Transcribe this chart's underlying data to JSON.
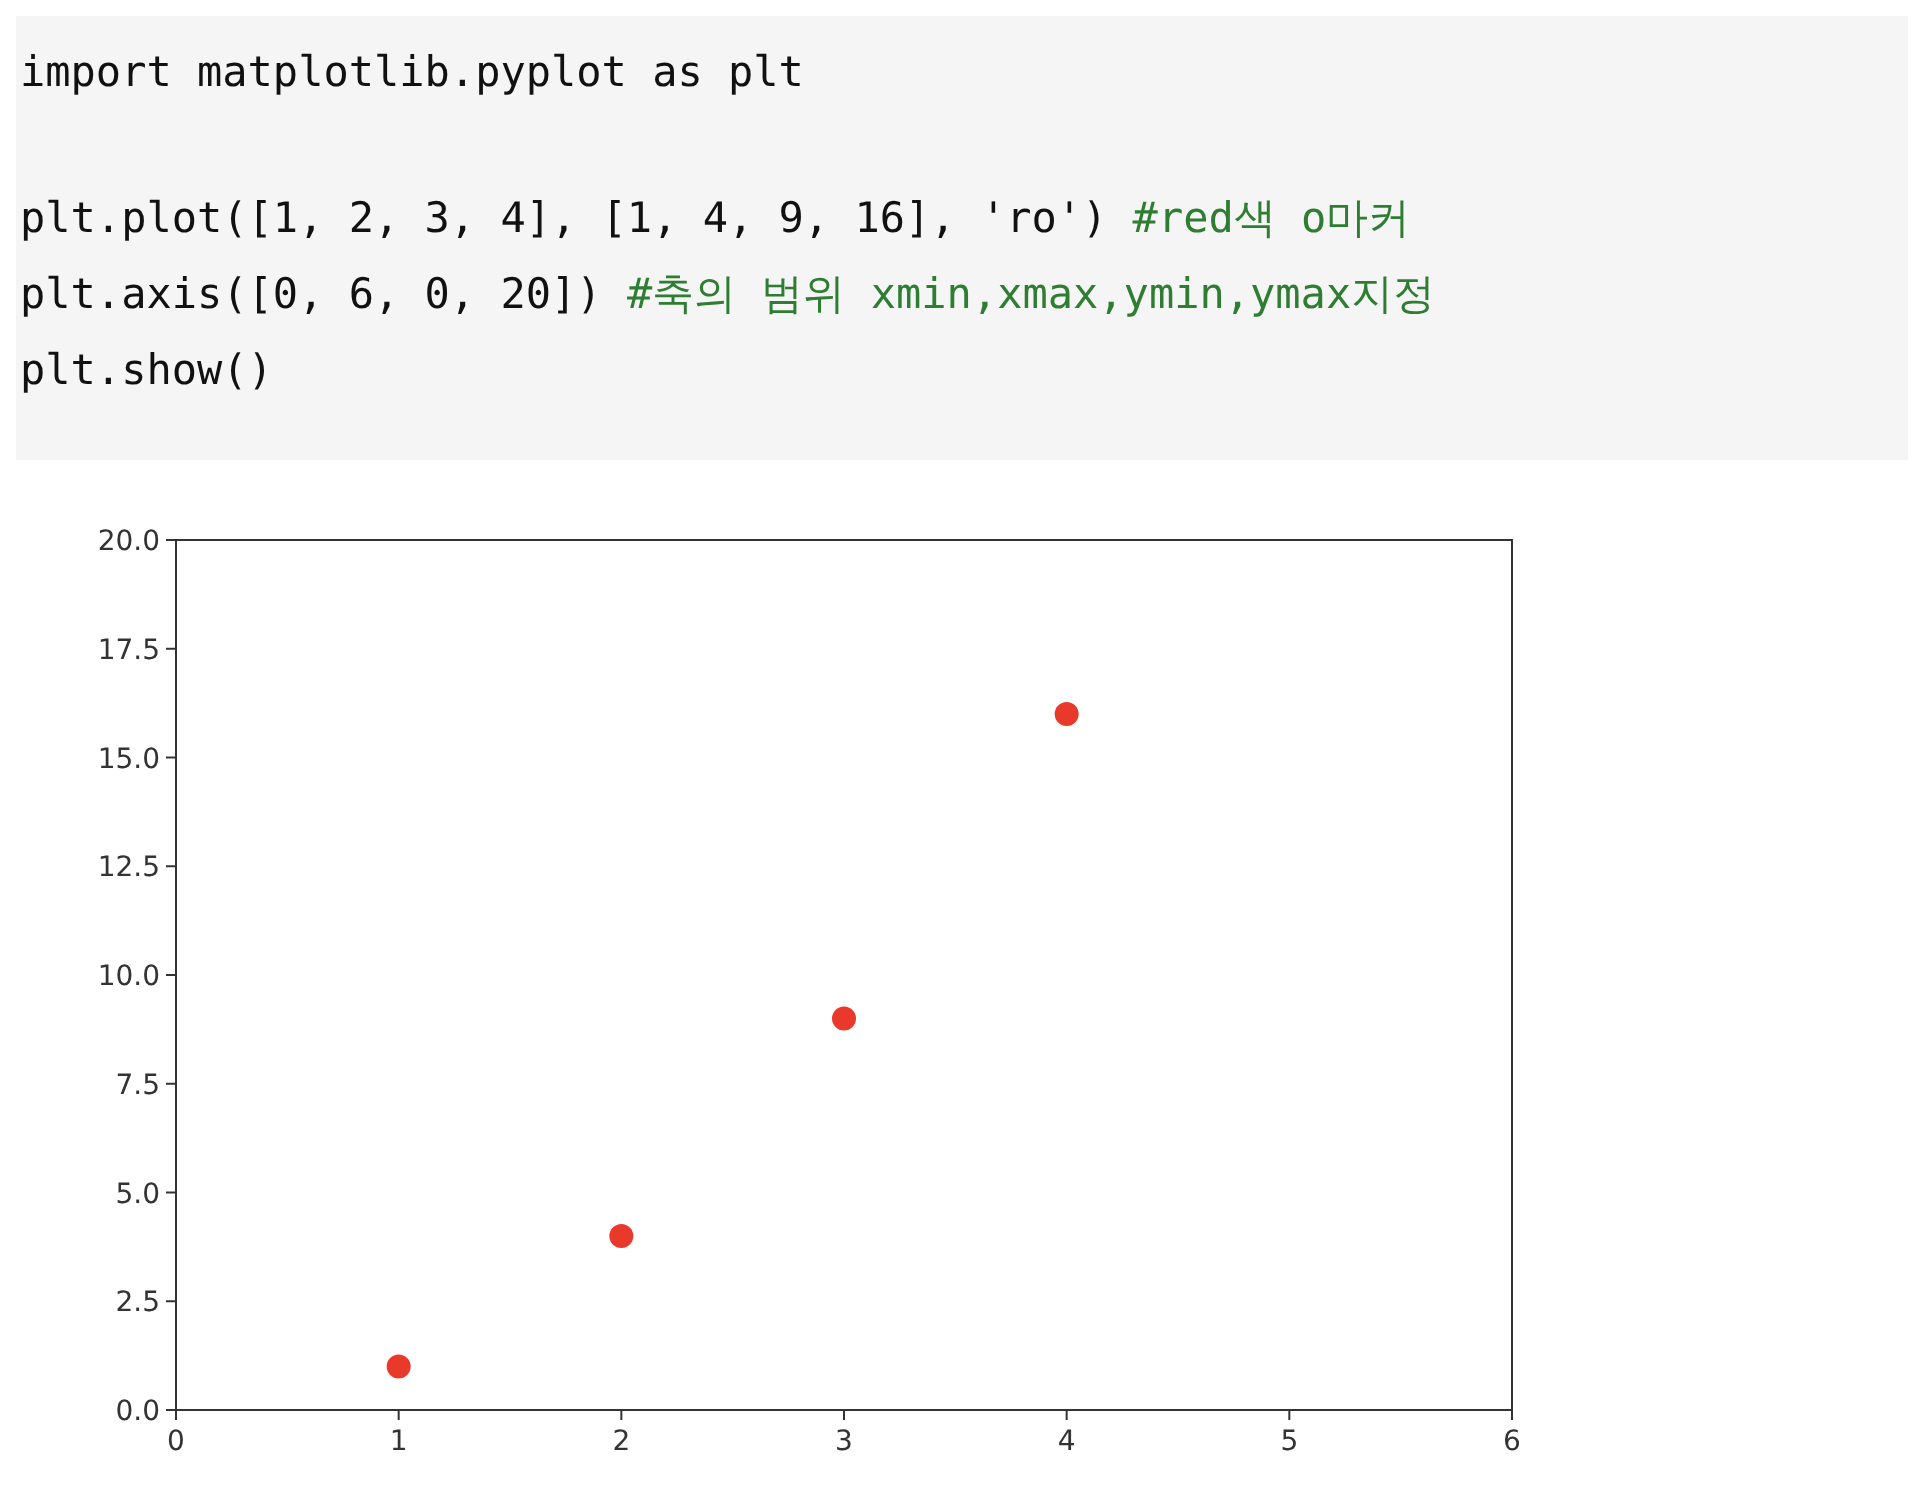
{
  "chart_data": {
    "type": "scatter",
    "annotations": [
      "import matplotlib.pyplot as plt",
      "plt.plot([1, 2, 3, 4], [1, 4, 9, 16], 'ro') #red색 o마커",
      "plt.axis([0, 6, 0, 20]) #축의 범위 xmin,xmax,ymin,ymax지정",
      "plt.show()"
    ],
    "x": [
      1,
      2,
      3,
      4
    ],
    "series": [
      {
        "color": "#e8392b",
        "values": [
          1,
          4,
          9,
          16
        ]
      }
    ],
    "marker": "circle",
    "xlim": [
      0,
      6
    ],
    "xticks": [
      0,
      1,
      2,
      3,
      4,
      5,
      6
    ],
    "ylim": [
      0,
      20
    ],
    "yticks": [
      {
        "value": 0,
        "label": "0.0"
      },
      {
        "value": 2.5,
        "label": "2.5"
      },
      {
        "value": 5,
        "label": "5.0"
      },
      {
        "value": 7.5,
        "label": "7.5"
      },
      {
        "value": 10,
        "label": "10.0"
      },
      {
        "value": 12.5,
        "label": "12.5"
      },
      {
        "value": 15,
        "label": "15.0"
      },
      {
        "value": 17.5,
        "label": "17.5"
      },
      {
        "value": 20,
        "label": "20.0"
      }
    ],
    "grid": false
  }
}
